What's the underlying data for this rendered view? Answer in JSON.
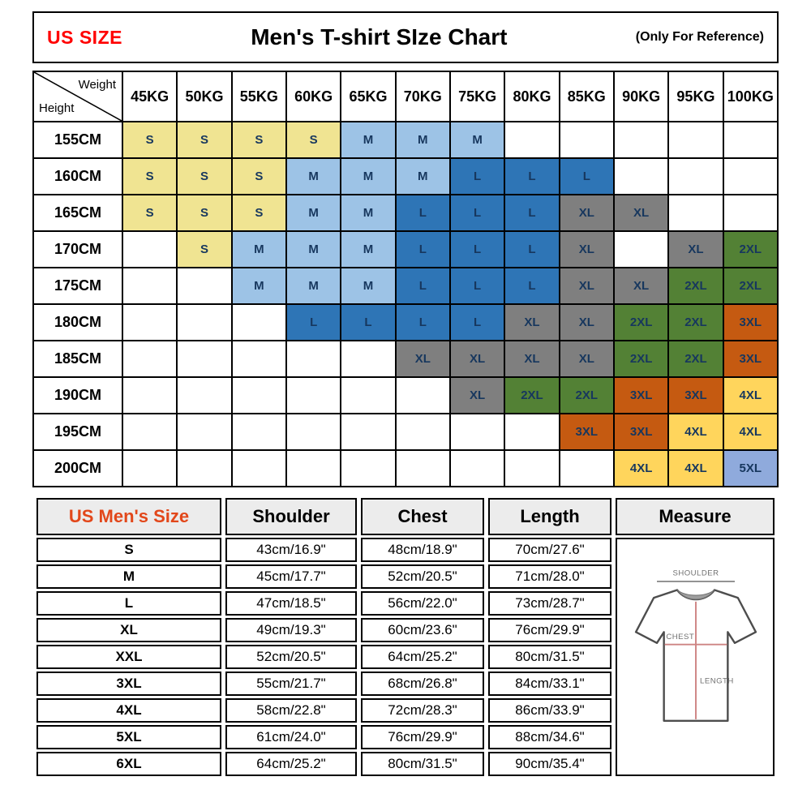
{
  "header": {
    "us_size_label": "US SIZE",
    "us_size_color": "#FF0000",
    "title": "Men's T-shirt SIze Chart",
    "reference_note": "(Only For Reference)"
  },
  "matrix": {
    "corner_weight_label": "Weight",
    "corner_height_label": "Height",
    "size_colors": {
      "S": "#F0E492",
      "M": "#9DC3E6",
      "L": "#2E75B6",
      "XL": "#7F7F7F",
      "2XL": "#538135",
      "3XL": "#C55A11",
      "4XL": "#FFD55C",
      "5XL": "#8FAADC"
    }
  },
  "size_table": {
    "headers": {
      "size": "US Men's Size",
      "shoulder": "Shoulder",
      "chest": "Chest",
      "length": "Length",
      "measure": "Measure"
    },
    "accent_color": "#E2471A",
    "diagram": {
      "shoulder_label": "SHOULDER",
      "chest_label": "CHEST",
      "length_label": "LENGTH"
    }
  },
  "chart_data": [
    {
      "type": "heatmap",
      "title": "Men's T-shirt SIze Chart",
      "x_label": "Weight",
      "y_label": "Height",
      "x_categories": [
        "45KG",
        "50KG",
        "55KG",
        "60KG",
        "65KG",
        "70KG",
        "75KG",
        "80KG",
        "85KG",
        "90KG",
        "95KG",
        "100KG"
      ],
      "y_categories": [
        "155CM",
        "160CM",
        "165CM",
        "170CM",
        "175CM",
        "180CM",
        "185CM",
        "190CM",
        "195CM",
        "200CM"
      ],
      "values": [
        [
          "S",
          "S",
          "S",
          "S",
          "M",
          "M",
          "M",
          "",
          "",
          "",
          "",
          ""
        ],
        [
          "S",
          "S",
          "S",
          "M",
          "M",
          "M",
          "L",
          "L",
          "L",
          "",
          "",
          ""
        ],
        [
          "S",
          "S",
          "S",
          "M",
          "M",
          "L",
          "L",
          "L",
          "XL",
          "XL",
          "",
          ""
        ],
        [
          "",
          "S",
          "M",
          "M",
          "M",
          "L",
          "L",
          "L",
          "XL",
          "",
          "XL",
          "2XL"
        ],
        [
          "",
          "",
          "M",
          "M",
          "M",
          "L",
          "L",
          "L",
          "XL",
          "XL",
          "2XL",
          "2XL"
        ],
        [
          "",
          "",
          "",
          "L",
          "L",
          "L",
          "L",
          "XL",
          "XL",
          "2XL",
          "2XL",
          "3XL"
        ],
        [
          "",
          "",
          "",
          "",
          "",
          "XL",
          "XL",
          "XL",
          "XL",
          "2XL",
          "2XL",
          "3XL"
        ],
        [
          "",
          "",
          "",
          "",
          "",
          "",
          "XL",
          "2XL",
          "2XL",
          "3XL",
          "3XL",
          "4XL"
        ],
        [
          "",
          "",
          "",
          "",
          "",
          "",
          "",
          "",
          "3XL",
          "3XL",
          "4XL",
          "4XL"
        ],
        [
          "",
          "",
          "",
          "",
          "",
          "",
          "",
          "",
          "",
          "4XL",
          "4XL",
          "5XL"
        ]
      ]
    },
    {
      "type": "table",
      "columns": [
        "US Men's Size",
        "Shoulder",
        "Chest",
        "Length"
      ],
      "rows": [
        [
          "S",
          "43cm/16.9\"",
          "48cm/18.9\"",
          "70cm/27.6\""
        ],
        [
          "M",
          "45cm/17.7\"",
          "52cm/20.5\"",
          "71cm/28.0\""
        ],
        [
          "L",
          "47cm/18.5\"",
          "56cm/22.0\"",
          "73cm/28.7\""
        ],
        [
          "XL",
          "49cm/19.3\"",
          "60cm/23.6\"",
          "76cm/29.9\""
        ],
        [
          "XXL",
          "52cm/20.5\"",
          "64cm/25.2\"",
          "80cm/31.5\""
        ],
        [
          "3XL",
          "55cm/21.7\"",
          "68cm/26.8\"",
          "84cm/33.1\""
        ],
        [
          "4XL",
          "58cm/22.8\"",
          "72cm/28.3\"",
          "86cm/33.9\""
        ],
        [
          "5XL",
          "61cm/24.0\"",
          "76cm/29.9\"",
          "88cm/34.6\""
        ],
        [
          "6XL",
          "64cm/25.2\"",
          "80cm/31.5\"",
          "90cm/35.4\""
        ]
      ]
    }
  ]
}
